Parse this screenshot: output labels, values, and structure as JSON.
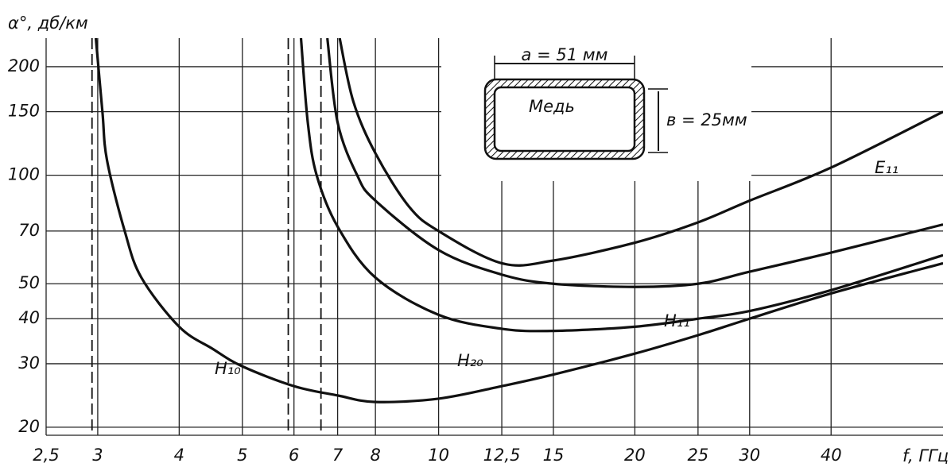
{
  "chart_data": {
    "type": "line",
    "ylabel": "α°, дб/км",
    "xlabel": "f, ГГц",
    "xscale": "log",
    "yscale": "log",
    "grid": true,
    "xlim": [
      2.5,
      59.4
    ],
    "ylim": [
      19,
      240
    ],
    "xticks": [
      {
        "value": 2.5,
        "label": "2,5"
      },
      3,
      4,
      5,
      6,
      7,
      8,
      10,
      {
        "value": 12.5,
        "label": "12,5"
      },
      15,
      20,
      25,
      30,
      40
    ],
    "yticks": [
      20,
      30,
      40,
      50,
      70,
      100,
      150,
      200
    ],
    "cutoff_lines": [
      2.94,
      5.88,
      6.6
    ],
    "series": [
      {
        "name": "H₁₀",
        "color": "#111111",
        "x": [
          2.98,
          3.05,
          3.1,
          3.3,
          3.5,
          4,
          4.5,
          5,
          6,
          7,
          8,
          10,
          12.5,
          15,
          20,
          25,
          30,
          40,
          59.4
        ],
        "values": [
          240,
          150,
          110,
          70,
          52,
          38,
          33,
          29.5,
          26,
          24.5,
          23.5,
          24,
          26,
          28,
          32,
          36,
          40,
          47,
          57
        ]
      },
      {
        "name": "H₂₀",
        "color": "#111111",
        "x": [
          6.15,
          6.3,
          6.5,
          7,
          8,
          10,
          12.5,
          15,
          20,
          25,
          30,
          40,
          59.4
        ],
        "values": [
          240,
          140,
          100,
          72,
          52,
          41,
          37.5,
          37,
          38,
          40,
          42,
          48,
          60
        ]
      },
      {
        "name": "H₁₁",
        "color": "#111111",
        "x": [
          6.75,
          7,
          7.5,
          8,
          10,
          12.5,
          15,
          20,
          25,
          30,
          40,
          59.4
        ],
        "values": [
          240,
          140,
          100,
          85,
          62,
          53,
          50,
          49,
          50,
          54,
          61,
          73
        ]
      },
      {
        "name": "E₁₁",
        "color": "#111111",
        "x": [
          7.05,
          7.4,
          8,
          9,
          10,
          12.5,
          15,
          20,
          25,
          30,
          40,
          59.4
        ],
        "values": [
          240,
          160,
          115,
          82,
          70,
          57,
          58,
          65,
          74,
          85,
          105,
          150
        ]
      }
    ],
    "inset": {
      "width_label": "a = 51 мм",
      "height_label": "в = 25мм",
      "material": "Медь"
    }
  }
}
